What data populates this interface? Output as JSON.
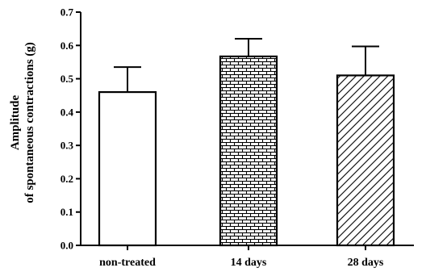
{
  "chart_data": {
    "type": "bar",
    "title": "",
    "xlabel": "",
    "ylabel_lines": [
      "Amplitude",
      "of spontaneous contractions (g)"
    ],
    "categories": [
      "non-treated",
      "14 days",
      "28 days"
    ],
    "values": [
      0.46,
      0.567,
      0.51
    ],
    "errors": [
      0.075,
      0.053,
      0.087
    ],
    "patterns": [
      "solid",
      "brick",
      "diagonal"
    ],
    "ylim": [
      0,
      0.7
    ],
    "yticks": [
      "0.0",
      "0.1",
      "0.2",
      "0.3",
      "0.4",
      "0.5",
      "0.6",
      "0.7"
    ],
    "grid": false,
    "colors": {
      "fill": "#ffffff",
      "stroke": "#000000"
    }
  }
}
